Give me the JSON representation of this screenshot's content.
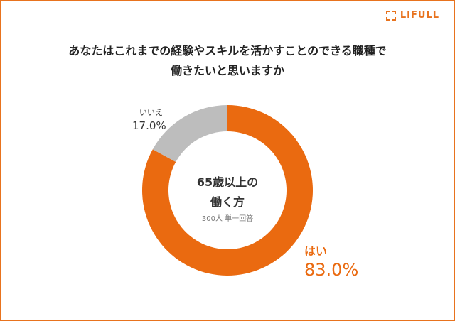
{
  "logo": "LIFULL",
  "title_lines": [
    "あなたはこれまでの経験やスキルを活かすことのできる職種で",
    "働きたいと思いますか"
  ],
  "center": {
    "line1": "65歳以上の",
    "line2": "働く方",
    "note": "300人 単一回答"
  },
  "chart_data": {
    "type": "pie",
    "title": "あなたはこれまでの経験やスキルを活かすことのできる職種で働きたいと思いますか",
    "slices": [
      {
        "label": "はい",
        "value": 83.0,
        "value_label": "83.0%",
        "color": "#ea6a10"
      },
      {
        "label": "いいえ",
        "value": 17.0,
        "value_label": "17.0%",
        "color": "#bdbdbd"
      }
    ]
  }
}
